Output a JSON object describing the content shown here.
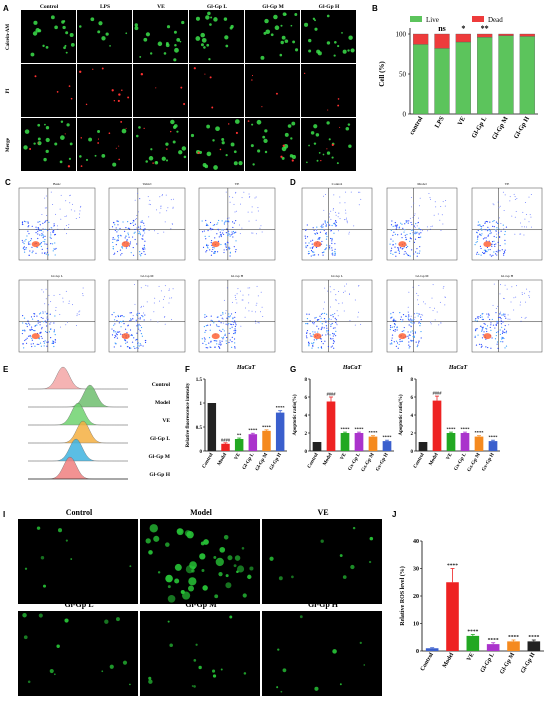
{
  "panel_letters": [
    "A",
    "B",
    "C",
    "D",
    "E",
    "F",
    "G",
    "H",
    "I",
    "J"
  ],
  "panelA": {
    "columns": [
      "Control",
      "LPS",
      "VE",
      "Gl-Gp L",
      "Gl-Gp M",
      "Gl-Gp H"
    ],
    "rows": [
      "Calcein-AM",
      "PI",
      "Merge"
    ]
  },
  "flowC": {
    "titles": [
      "Basic",
      "Vehicl",
      "VE",
      "Gl-Gp L",
      "Gl-Gp M",
      "Gl-Gp H"
    ],
    "quads": [
      [
        "Q1",
        "Q2",
        "Q3",
        "Q4"
      ]
    ]
  },
  "flowD": {
    "titles": [
      "Control",
      "Model",
      "VE",
      "Gl-Gp L",
      "Gl-Gp M",
      "Gl-Gp H"
    ]
  },
  "histE": {
    "labels": [
      "Control",
      "Model",
      "VE",
      "Gl-Gp L",
      "Gl-Gp M",
      "Gl-Gp H"
    ],
    "colors": [
      "#f4a6a6",
      "#6fbf6f",
      "#6fd36f",
      "#f5b041",
      "#3fb3e0",
      "#f08080"
    ]
  },
  "panelI": {
    "labels": [
      "Control",
      "Model",
      "VE",
      "Gl-Gp L",
      "Gl-Gp M",
      "Gl-Gp H"
    ]
  },
  "chart_data": [
    {
      "panel": "B",
      "type": "bar",
      "categories": [
        "control",
        "LPS",
        "VE",
        "Gl-Gp L",
        "Gl-Gp M",
        "Gl-Gp H"
      ],
      "series": [
        {
          "name": "Live",
          "values": [
            87,
            82,
            90,
            96,
            98,
            97
          ],
          "color": "#5cc45c"
        },
        {
          "name": "Dead",
          "values": [
            13,
            18,
            10,
            4,
            2,
            3
          ],
          "color": "#ee3b3b"
        }
      ],
      "ylabel": "Cell (%)",
      "ylim": [
        0,
        100
      ],
      "yticks": [
        0,
        50,
        100
      ],
      "annotations": [
        "",
        "ns",
        "*",
        "**",
        "",
        ""
      ],
      "legend": "top"
    },
    {
      "panel": "F",
      "type": "bar",
      "title": "HaCaT",
      "categories": [
        "Control",
        "Model",
        "VE",
        "Gl-Gp L",
        "Gl-Gp M",
        "Gl-Gp H"
      ],
      "values": [
        1.0,
        0.15,
        0.25,
        0.35,
        0.42,
        0.8
      ],
      "colors": [
        "#222222",
        "#ee2222",
        "#22a822",
        "#aa33cc",
        "#f58a1f",
        "#3a5fcd"
      ],
      "errors": [
        0,
        0.02,
        0.02,
        0.02,
        0.02,
        0.04
      ],
      "annotations": [
        "",
        "####",
        "**",
        "****",
        "****",
        "****"
      ],
      "ylabel": "Relative fluorescence intensity",
      "ylim": [
        0,
        1.5
      ],
      "yticks": [
        0.0,
        0.5,
        1.0,
        1.5
      ]
    },
    {
      "panel": "G",
      "type": "bar",
      "title": "HaCaT",
      "categories": [
        "Control",
        "Model",
        "VE",
        "Gx-Gp L",
        "Gx-Gp M",
        "Gx-Gp H"
      ],
      "values": [
        1.0,
        5.5,
        2.0,
        2.0,
        1.6,
        1.1
      ],
      "colors": [
        "#222222",
        "#ee2222",
        "#22a822",
        "#aa33cc",
        "#f58a1f",
        "#3a5fcd"
      ],
      "errors": [
        0,
        0.5,
        0.1,
        0.1,
        0.1,
        0.1
      ],
      "annotations": [
        "",
        "####",
        "****",
        "****",
        "****",
        "****"
      ],
      "ylabel": "Apoptotic ratio(%)",
      "ylim": [
        0,
        8
      ],
      "yticks": [
        0,
        2,
        4,
        6,
        8
      ]
    },
    {
      "panel": "H",
      "type": "bar",
      "title": "HaCaT",
      "categories": [
        "Control",
        "Model",
        "VE",
        "Gx-Gp L",
        "Gx-Gp M",
        "Gx-Gp H"
      ],
      "values": [
        1.0,
        5.6,
        2.0,
        2.0,
        1.6,
        1.1
      ],
      "colors": [
        "#222222",
        "#ee2222",
        "#22a822",
        "#aa33cc",
        "#f58a1f",
        "#3a5fcd"
      ],
      "errors": [
        0,
        0.5,
        0.1,
        0.1,
        0.1,
        0.1
      ],
      "annotations": [
        "",
        "####",
        "****",
        "****",
        "****",
        "****"
      ],
      "ylabel": "Apoptotic ratio(%)",
      "ylim": [
        0,
        8
      ],
      "yticks": [
        0,
        2,
        4,
        6,
        8
      ]
    },
    {
      "panel": "J",
      "type": "bar",
      "categories": [
        "Control",
        "Model",
        "VE",
        "Gl-Gp L",
        "Gl-Gp M",
        "Gl-Gp H"
      ],
      "values": [
        1,
        25,
        5.5,
        2.5,
        3.5,
        3.5
      ],
      "colors": [
        "#3a5fcd",
        "#ee2222",
        "#22a822",
        "#aa33cc",
        "#f58a1f",
        "#222222"
      ],
      "errors": [
        0.2,
        5,
        0.5,
        0.5,
        0.5,
        0.5
      ],
      "annotations": [
        "",
        "****",
        "****",
        "****",
        "****",
        "****"
      ],
      "ylabel": "Relative ROS level (%)",
      "ylim": [
        0,
        40
      ],
      "yticks": [
        0,
        10,
        20,
        30,
        40
      ]
    }
  ]
}
